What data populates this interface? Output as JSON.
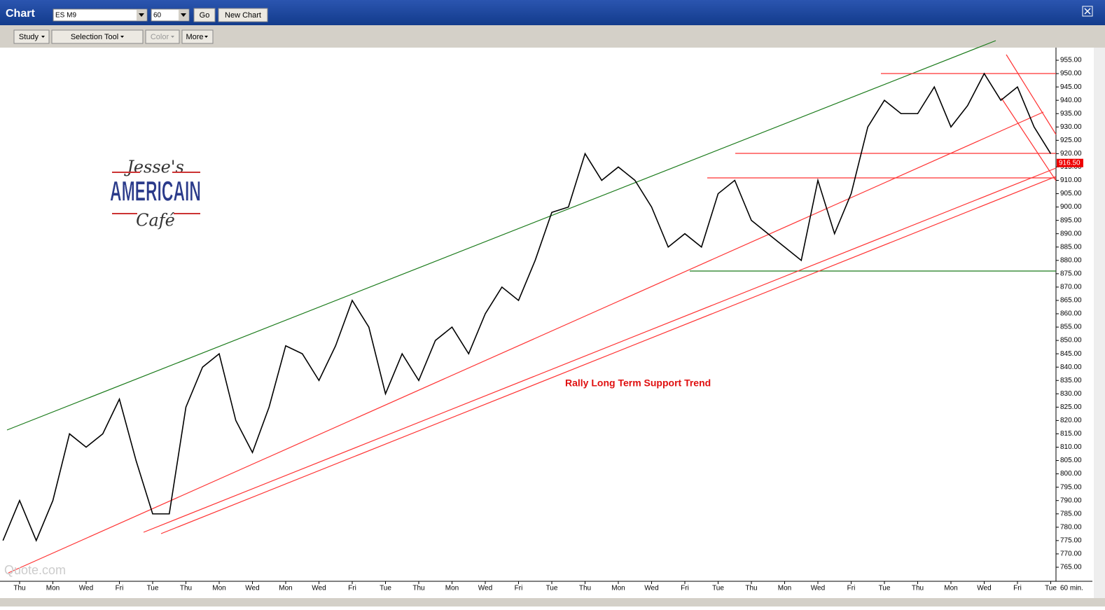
{
  "window": {
    "title": "Chart",
    "symbol": "ES M9",
    "interval": "60",
    "go": "Go",
    "new_chart": "New Chart"
  },
  "toolbar": {
    "study": "Study",
    "selection_tool": "Selection Tool",
    "color": "Color",
    "more": "More"
  },
  "logo": {
    "line1": "Jesse's",
    "line2": "AMERICAIN",
    "line3": "Café"
  },
  "watermark": "Quote.com",
  "chart_data": {
    "type": "line",
    "color": "#000000",
    "annotation": "Rally Long Term Support Trend",
    "x_unit": "60 min.",
    "categories": [
      null,
      "Thu",
      null,
      "Mon",
      null,
      "Wed",
      null,
      "Fri",
      null,
      "Tue",
      null,
      "Thu",
      null,
      "Mon",
      null,
      "Wed",
      null,
      "Mon",
      null,
      "Wed",
      null,
      "Fri",
      null,
      "Tue",
      null,
      "Thu",
      null,
      "Mon",
      null,
      "Wed",
      null,
      "Fri",
      null,
      "Tue",
      null,
      "Thu",
      null,
      "Mon",
      null,
      "Wed",
      null,
      "Fri",
      null,
      "Tue",
      null,
      "Thu",
      null,
      "Mon",
      null,
      "Wed",
      null,
      "Fri",
      null,
      "Tue",
      null,
      "Thu",
      null,
      "Mon",
      null,
      "Wed",
      null,
      "Fri",
      null,
      "Tue"
    ],
    "values": [
      775,
      790,
      775,
      790,
      815,
      810,
      815,
      828,
      805,
      785,
      785,
      825,
      840,
      845,
      820,
      808,
      825,
      848,
      845,
      835,
      848,
      865,
      855,
      830,
      845,
      835,
      850,
      855,
      845,
      860,
      870,
      865,
      880,
      898,
      900,
      920,
      910,
      915,
      910,
      900,
      885,
      890,
      885,
      905,
      910,
      895,
      890,
      885,
      880,
      910,
      890,
      905,
      930,
      940,
      935,
      935,
      945,
      930,
      938,
      950,
      940,
      945,
      930,
      920
    ],
    "last_price": {
      "value": 916.5,
      "label": "916.50"
    },
    "ylim": [
      760,
      960
    ],
    "yticks": [
      {
        "value": 765,
        "label": "765.00"
      },
      {
        "value": 770,
        "label": "770.00"
      },
      {
        "value": 775,
        "label": "775.00"
      },
      {
        "value": 780,
        "label": "780.00"
      },
      {
        "value": 785,
        "label": "785.00"
      },
      {
        "value": 790,
        "label": "790.00"
      },
      {
        "value": 795,
        "label": "795.00"
      },
      {
        "value": 800,
        "label": "800.00"
      },
      {
        "value": 805,
        "label": "805.00"
      },
      {
        "value": 810,
        "label": "810.00"
      },
      {
        "value": 815,
        "label": "815.00"
      },
      {
        "value": 820,
        "label": "820.00"
      },
      {
        "value": 825,
        "label": "825.00"
      },
      {
        "value": 830,
        "label": "830.00"
      },
      {
        "value": 835,
        "label": "835.00"
      },
      {
        "value": 840,
        "label": "840.00"
      },
      {
        "value": 845,
        "label": "845.00"
      },
      {
        "value": 850,
        "label": "850.00"
      },
      {
        "value": 855,
        "label": "855.00"
      },
      {
        "value": 860,
        "label": "860.00"
      },
      {
        "value": 865,
        "label": "865.00"
      },
      {
        "value": 870,
        "label": "870.00"
      },
      {
        "value": 875,
        "label": "875.00"
      },
      {
        "value": 880,
        "label": "880.00"
      },
      {
        "value": 885,
        "label": "885.00"
      },
      {
        "value": 890,
        "label": "890.00"
      },
      {
        "value": 895,
        "label": "895.00"
      },
      {
        "value": 900,
        "label": "900.00"
      },
      {
        "value": 905,
        "label": "905.00"
      },
      {
        "value": 910,
        "label": "910.00"
      },
      {
        "value": 915,
        "label": "915.00"
      },
      {
        "value": 920,
        "label": "920.00"
      },
      {
        "value": 925,
        "label": "925.00"
      },
      {
        "value": 930,
        "label": "930.00"
      },
      {
        "value": 935,
        "label": "935.00"
      },
      {
        "value": 940,
        "label": "940.00"
      },
      {
        "value": 945,
        "label": "945.00"
      },
      {
        "value": 950,
        "label": "950.00"
      },
      {
        "value": 955,
        "label": "955.00"
      }
    ]
  }
}
